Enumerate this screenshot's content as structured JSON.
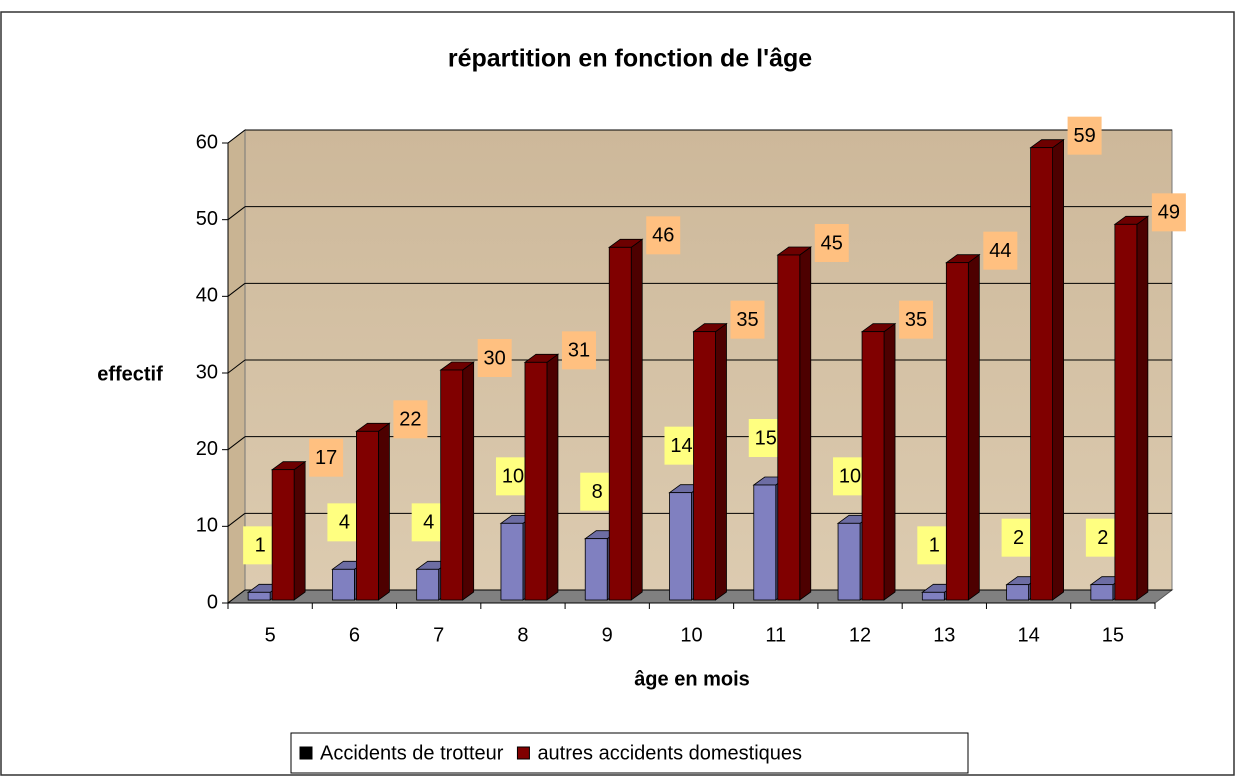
{
  "chart_data": {
    "type": "bar",
    "title": "répartition en fonction de l'âge",
    "y_label": "effectif",
    "x_label": "âge en mois",
    "categories": [
      "5",
      "6",
      "7",
      "8",
      "9",
      "10",
      "11",
      "12",
      "13",
      "14",
      "15"
    ],
    "series": [
      {
        "name": "Accidents de trotteur",
        "color": "#8080c0",
        "values": [
          1,
          4,
          4,
          10,
          8,
          14,
          15,
          10,
          1,
          2,
          2
        ]
      },
      {
        "name": "autres accidents domestiques",
        "color": "#800000",
        "values": [
          17,
          22,
          30,
          31,
          46,
          35,
          45,
          35,
          44,
          59,
          49
        ]
      }
    ],
    "ylim": [
      0,
      60
    ],
    "yticks": [
      0,
      10,
      20,
      30,
      40,
      50,
      60
    ],
    "grid": true,
    "legend": "bottom"
  }
}
